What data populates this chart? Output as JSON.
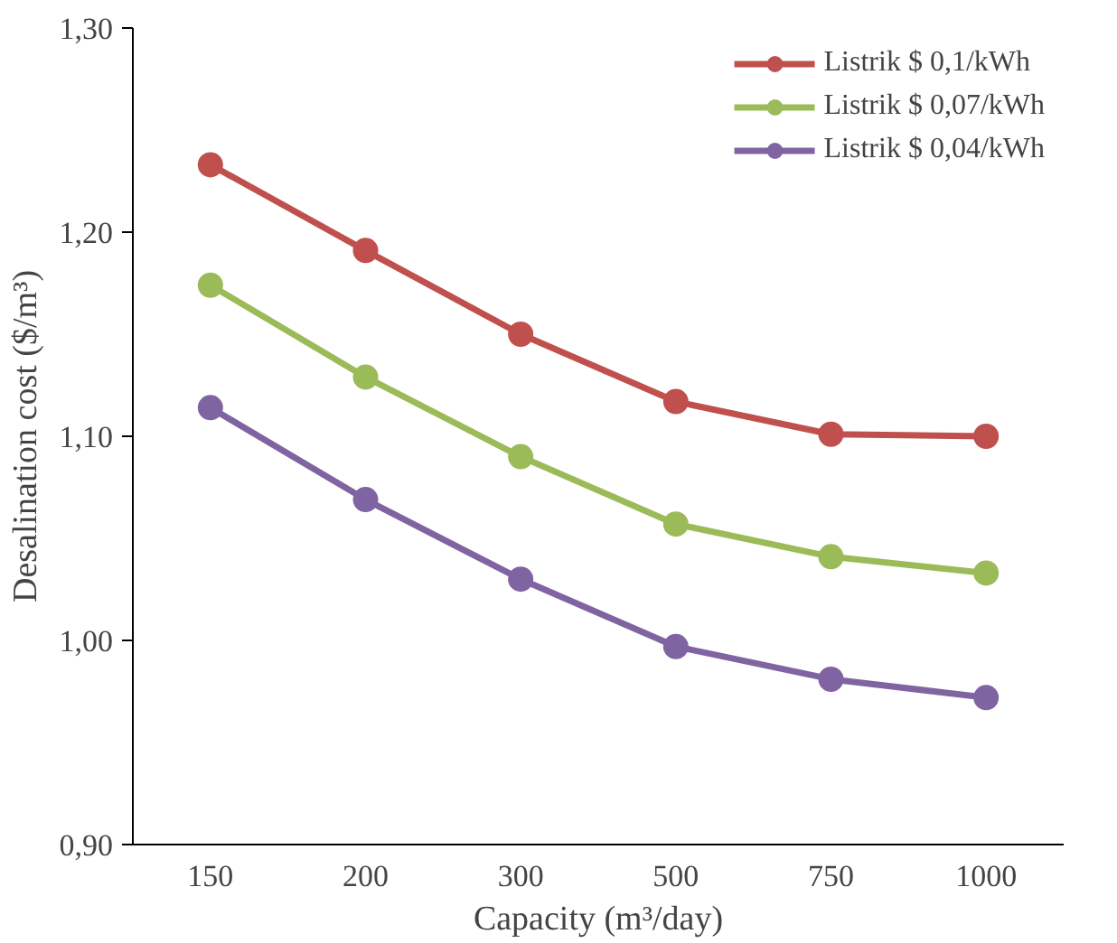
{
  "chart_data": {
    "type": "line",
    "xlabel": "Capacity (m³/day)",
    "ylabel": "Desalination cost ($/m³)",
    "categories": [
      "150",
      "200",
      "300",
      "500",
      "750",
      "1000"
    ],
    "series": [
      {
        "name": "Listrik $ 0,1/kWh",
        "color": "#c0504d",
        "values": [
          1.233,
          1.191,
          1.15,
          1.117,
          1.101,
          1.1
        ]
      },
      {
        "name": "Listrik $ 0,07/kWh",
        "color": "#9bbb59",
        "values": [
          1.174,
          1.129,
          1.09,
          1.057,
          1.041,
          1.033
        ]
      },
      {
        "name": "Listrik $ 0,04/kWh",
        "color": "#8064a2",
        "values": [
          1.114,
          1.069,
          1.03,
          0.997,
          0.981,
          0.972
        ]
      }
    ],
    "ylim": [
      0.9,
      1.3
    ],
    "yticks": [
      {
        "value": 0.9,
        "label": "0,90"
      },
      {
        "value": 1.0,
        "label": "1,00"
      },
      {
        "value": 1.1,
        "label": "1,10"
      },
      {
        "value": 1.2,
        "label": "1,20"
      },
      {
        "value": 1.3,
        "label": "1,30"
      }
    ],
    "grid": false,
    "legend": "top right",
    "marker": "circle",
    "line_style": "solid"
  }
}
